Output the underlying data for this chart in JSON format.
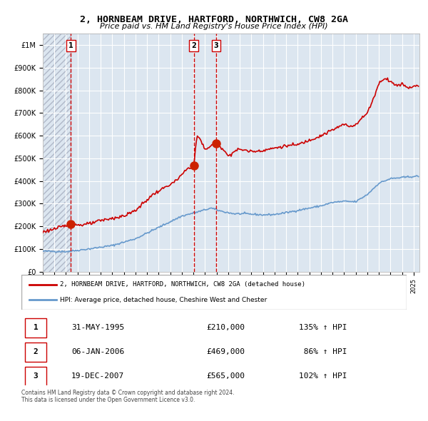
{
  "title": "2, HORNBEAM DRIVE, HARTFORD, NORTHWICH, CW8 2GA",
  "subtitle": "Price paid vs. HM Land Registry's House Price Index (HPI)",
  "purchases": [
    {
      "label": "1",
      "date_num": 1995.42,
      "price": 210000,
      "date_str": "31-MAY-1995",
      "hpi_pct": "135% ↑ HPI"
    },
    {
      "label": "2",
      "date_num": 2006.03,
      "price": 469000,
      "date_str": "06-JAN-2006",
      "hpi_pct": "86% ↑ HPI"
    },
    {
      "label": "3",
      "date_num": 2007.97,
      "price": 565000,
      "date_str": "19-DEC-2007",
      "hpi_pct": "102% ↑ HPI"
    }
  ],
  "legend_property": "2, HORNBEAM DRIVE, HARTFORD, NORTHWICH, CW8 2GA (detached house)",
  "legend_hpi": "HPI: Average price, detached house, Cheshire West and Chester",
  "footer": "Contains HM Land Registry data © Crown copyright and database right 2024.\nThis data is licensed under the Open Government Licence v3.0.",
  "bg_color": "#dce6f0",
  "plot_bg_color": "#dce6f0",
  "hatch_color": "#b0b8c8",
  "red_line_color": "#cc0000",
  "blue_line_color": "#6699cc",
  "dashed_color": "#cc0000",
  "ylim": [
    0,
    1050000
  ],
  "xlim_start": 1993.0,
  "xlim_end": 2025.5
}
